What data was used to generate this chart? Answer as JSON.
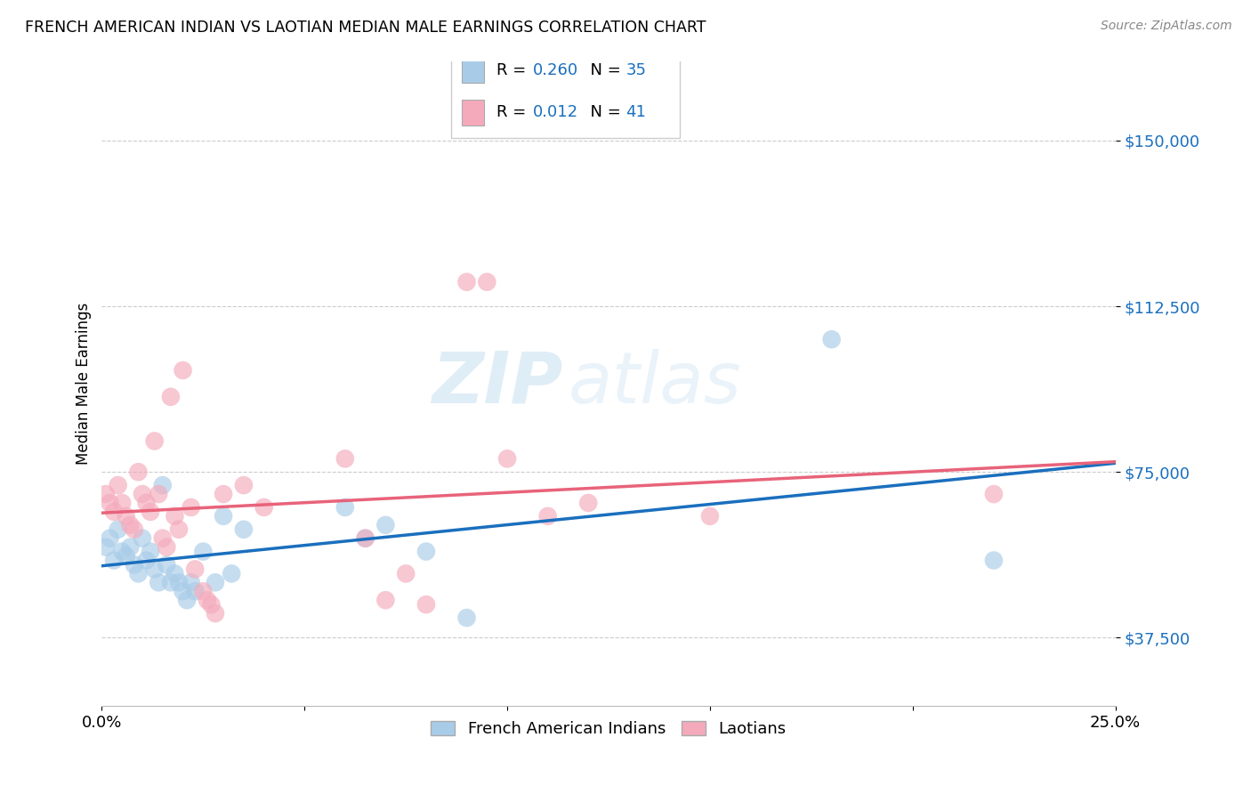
{
  "title": "FRENCH AMERICAN INDIAN VS LAOTIAN MEDIAN MALE EARNINGS CORRELATION CHART",
  "source": "Source: ZipAtlas.com",
  "ylabel": "Median Male Earnings",
  "watermark": "ZIPatlas",
  "xlim": [
    0.0,
    0.25
  ],
  "ylim": [
    22000,
    168000
  ],
  "yticks": [
    37500,
    75000,
    112500,
    150000
  ],
  "ytick_labels": [
    "$37,500",
    "$75,000",
    "$112,500",
    "$150,000"
  ],
  "xticks": [
    0.0,
    0.05,
    0.1,
    0.15,
    0.2,
    0.25
  ],
  "xtick_labels": [
    "0.0%",
    "",
    "",
    "",
    "",
    "25.0%"
  ],
  "blue_R": "0.260",
  "blue_N": "35",
  "pink_R": "0.012",
  "pink_N": "41",
  "legend_label_blue": "French American Indians",
  "legend_label_pink": "Laotians",
  "blue_color": "#a8cce8",
  "pink_color": "#f4aabb",
  "blue_line_color": "#1a6fbe",
  "pink_line_color": "#e8637a",
  "blue_points": [
    [
      0.001,
      58000
    ],
    [
      0.002,
      60000
    ],
    [
      0.003,
      55000
    ],
    [
      0.004,
      62000
    ],
    [
      0.005,
      57000
    ],
    [
      0.006,
      56000
    ],
    [
      0.007,
      58000
    ],
    [
      0.008,
      54000
    ],
    [
      0.009,
      52000
    ],
    [
      0.01,
      60000
    ],
    [
      0.011,
      55000
    ],
    [
      0.012,
      57000
    ],
    [
      0.013,
      53000
    ],
    [
      0.014,
      50000
    ],
    [
      0.015,
      72000
    ],
    [
      0.016,
      54000
    ],
    [
      0.017,
      50000
    ],
    [
      0.018,
      52000
    ],
    [
      0.019,
      50000
    ],
    [
      0.02,
      48000
    ],
    [
      0.021,
      46000
    ],
    [
      0.022,
      50000
    ],
    [
      0.023,
      48000
    ],
    [
      0.025,
      57000
    ],
    [
      0.028,
      50000
    ],
    [
      0.03,
      65000
    ],
    [
      0.032,
      52000
    ],
    [
      0.035,
      62000
    ],
    [
      0.06,
      67000
    ],
    [
      0.065,
      60000
    ],
    [
      0.07,
      63000
    ],
    [
      0.08,
      57000
    ],
    [
      0.09,
      42000
    ],
    [
      0.18,
      105000
    ],
    [
      0.22,
      55000
    ]
  ],
  "pink_points": [
    [
      0.001,
      70000
    ],
    [
      0.002,
      68000
    ],
    [
      0.003,
      66000
    ],
    [
      0.004,
      72000
    ],
    [
      0.005,
      68000
    ],
    [
      0.006,
      65000
    ],
    [
      0.007,
      63000
    ],
    [
      0.008,
      62000
    ],
    [
      0.009,
      75000
    ],
    [
      0.01,
      70000
    ],
    [
      0.011,
      68000
    ],
    [
      0.012,
      66000
    ],
    [
      0.013,
      82000
    ],
    [
      0.014,
      70000
    ],
    [
      0.015,
      60000
    ],
    [
      0.016,
      58000
    ],
    [
      0.017,
      92000
    ],
    [
      0.018,
      65000
    ],
    [
      0.019,
      62000
    ],
    [
      0.02,
      98000
    ],
    [
      0.022,
      67000
    ],
    [
      0.023,
      53000
    ],
    [
      0.025,
      48000
    ],
    [
      0.026,
      46000
    ],
    [
      0.027,
      45000
    ],
    [
      0.028,
      43000
    ],
    [
      0.03,
      70000
    ],
    [
      0.035,
      72000
    ],
    [
      0.04,
      67000
    ],
    [
      0.06,
      78000
    ],
    [
      0.065,
      60000
    ],
    [
      0.07,
      46000
    ],
    [
      0.075,
      52000
    ],
    [
      0.08,
      45000
    ],
    [
      0.09,
      118000
    ],
    [
      0.095,
      118000
    ],
    [
      0.1,
      78000
    ],
    [
      0.11,
      65000
    ],
    [
      0.12,
      68000
    ],
    [
      0.15,
      65000
    ],
    [
      0.22,
      70000
    ]
  ]
}
